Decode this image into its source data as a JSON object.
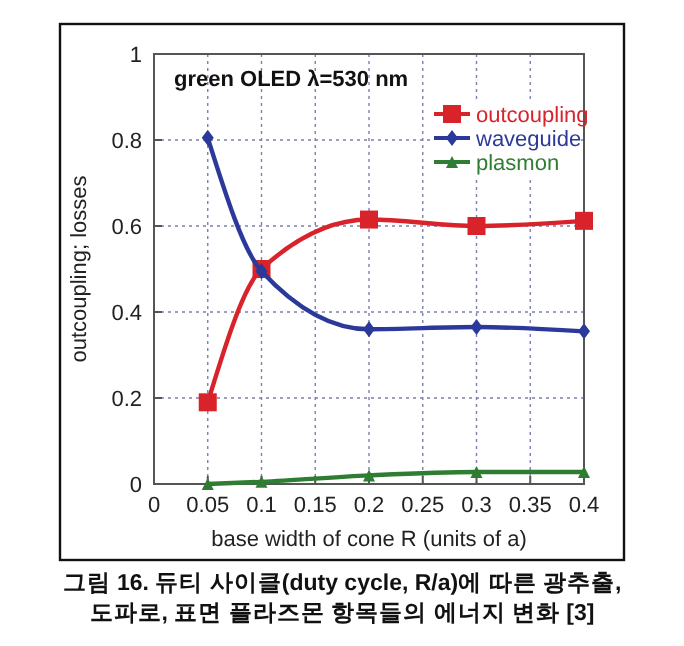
{
  "chart_data": {
    "type": "line",
    "title": "green OLED λ=530 nm",
    "xlabel": "base width of cone R (units of a)",
    "ylabel": "outcoupling; losses",
    "x": [
      0.05,
      0.1,
      0.2,
      0.3,
      0.4
    ],
    "series": [
      {
        "name": "outcoupling",
        "color": "#d8232a",
        "marker": "square",
        "values": [
          0.19,
          0.5,
          0.615,
          0.6,
          0.612
        ]
      },
      {
        "name": "waveguide",
        "color": "#2b3a9a",
        "marker": "diamond",
        "values": [
          0.805,
          0.495,
          0.36,
          0.365,
          0.355
        ]
      },
      {
        "name": "plasmon",
        "color": "#2e7d32",
        "marker": "triangle",
        "values": [
          0,
          0.005,
          0.02,
          0.028,
          0.028
        ]
      }
    ],
    "xlim": [
      0,
      0.4
    ],
    "xticks": [
      0,
      0.05,
      0.1,
      0.15,
      0.2,
      0.25,
      0.3,
      0.35,
      0.4
    ],
    "ylim": [
      0,
      1
    ],
    "yticks": [
      0,
      0.2,
      0.4,
      0.6,
      0.8,
      1
    ],
    "grid": true,
    "legend": "top right",
    "line_style": "solid",
    "annotations": [
      "그림 16. 듀티 사이클(duty cycle, R/a)에 따른 광추출, 도파로, 표면 플라즈몬 항목들의 에너지 변화 [3]"
    ]
  }
}
